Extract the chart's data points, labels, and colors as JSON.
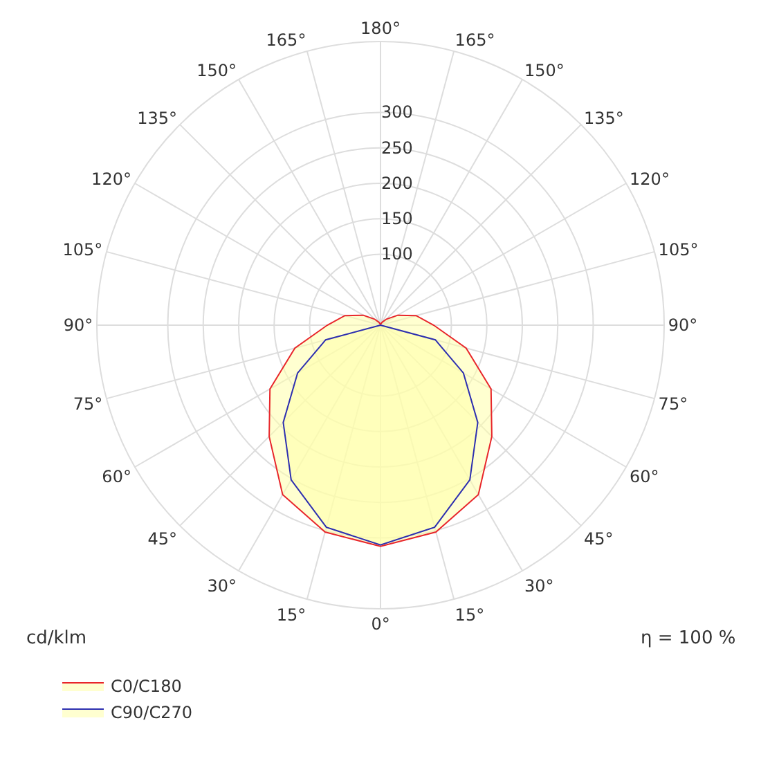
{
  "chart_data": {
    "type": "radar",
    "categories": [
      "180°",
      "165°",
      "150°",
      "135°",
      "120°",
      "105°",
      "90°",
      "75°",
      "60°",
      "45°",
      "30°",
      "15°",
      "0°",
      "15°",
      "30°",
      "45°",
      "60°",
      "75°",
      "90°",
      "105°",
      "120°",
      "135°",
      "150°",
      "165°"
    ],
    "series": [
      {
        "name": "C0/C180",
        "color": "#e8262b",
        "values": [
          0,
          2,
          5,
          12,
          28,
          52,
          75,
          125,
          180,
          222,
          276,
          302,
          312,
          302,
          276,
          222,
          180,
          125,
          75,
          52,
          28,
          12,
          5,
          2
        ]
      },
      {
        "name": "C90/C270",
        "color": "#2d2fb0",
        "values": [
          0,
          0,
          0,
          0,
          0,
          0,
          0,
          80,
          135,
          194,
          252,
          295,
          310,
          295,
          252,
          194,
          135,
          80,
          0,
          0,
          0,
          0,
          0,
          0
        ]
      }
    ],
    "ylim": [
      0,
      400
    ],
    "yticks": [
      100,
      150,
      200,
      250,
      300
    ],
    "grid": true,
    "legend": "bottom left",
    "marker": "none",
    "line_style": "solid",
    "annotations": [
      "cd/klm",
      "η = 100 %"
    ]
  }
}
